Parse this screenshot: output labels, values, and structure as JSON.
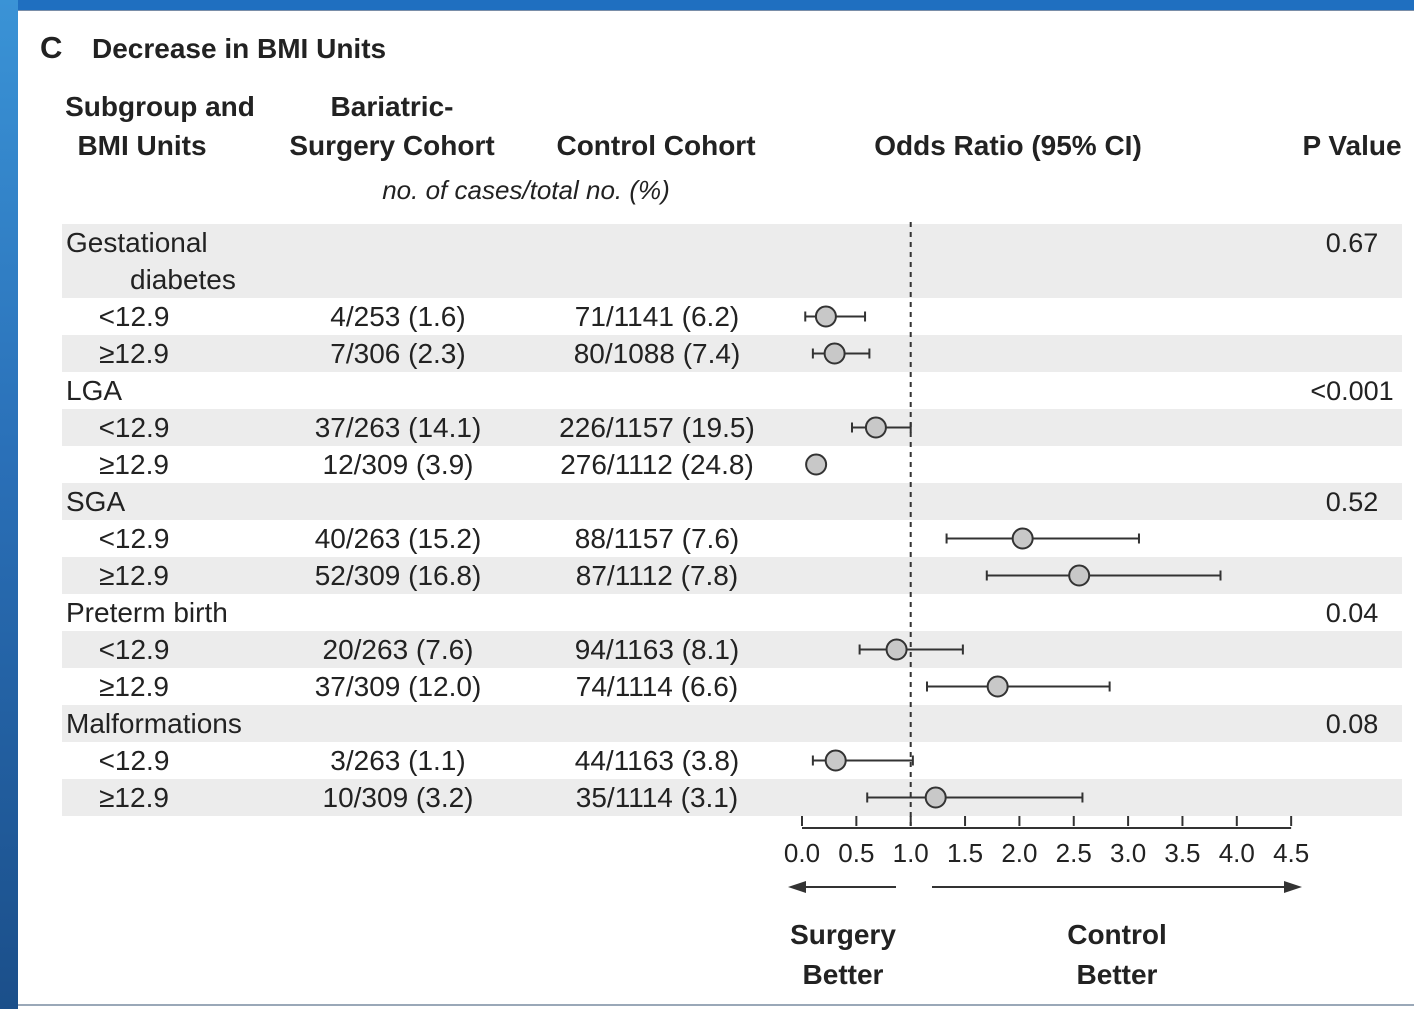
{
  "panel": {
    "letter": "C",
    "title": "Decrease in BMI Units"
  },
  "headers": {
    "subgroup": [
      "Subgroup and",
      "BMI Units"
    ],
    "surgery": [
      "Bariatric-",
      "Surgery Cohort"
    ],
    "control": "Control Cohort",
    "odds": "Odds Ratio (95% CI)",
    "pvalue": "P Value",
    "units": "no. of cases/total no. (%)"
  },
  "directions": {
    "left": [
      "Surgery",
      "Better"
    ],
    "right": [
      "Control",
      "Better"
    ]
  },
  "colors": {
    "band": "#ececec",
    "marker_fill": "#c8c8c8",
    "marker_stroke": "#333333",
    "line": "#333333"
  },
  "chart_data": {
    "type": "forest",
    "xlim": [
      0.0,
      4.5
    ],
    "reference_line": 1.0,
    "ticks": [
      "0.0",
      "0.5",
      "1.0",
      "1.5",
      "2.0",
      "2.5",
      "3.0",
      "3.5",
      "4.0",
      "4.5"
    ],
    "groups": [
      {
        "name": [
          "Gestational",
          "diabetes"
        ],
        "p_value": "0.67",
        "rows": [
          {
            "label": "<12.9",
            "surgery": "4/253 (1.6)",
            "control": "71/1141 (6.2)",
            "or": 0.22,
            "lo": 0.03,
            "hi": 0.58
          },
          {
            "label": "≥12.9",
            "surgery": "7/306 (2.3)",
            "control": "80/1088 (7.4)",
            "or": 0.3,
            "lo": 0.1,
            "hi": 0.62
          }
        ]
      },
      {
        "name": [
          "LGA"
        ],
        "p_value": "<0.001",
        "rows": [
          {
            "label": "<12.9",
            "surgery": "37/263 (14.1)",
            "control": "226/1157 (19.5)",
            "or": 0.68,
            "lo": 0.46,
            "hi": 1.0
          },
          {
            "label": "≥12.9",
            "surgery": "12/309 (3.9)",
            "control": "276/1112 (24.8)",
            "or": 0.13,
            "lo": null,
            "hi": null
          }
        ]
      },
      {
        "name": [
          "SGA"
        ],
        "p_value": "0.52",
        "rows": [
          {
            "label": "<12.9",
            "surgery": "40/263 (15.2)",
            "control": "88/1157 (7.6)",
            "or": 2.03,
            "lo": 1.33,
            "hi": 3.1
          },
          {
            "label": "≥12.9",
            "surgery": "52/309 (16.8)",
            "control": "87/1112 (7.8)",
            "or": 2.55,
            "lo": 1.7,
            "hi": 3.85
          }
        ]
      },
      {
        "name": [
          "Preterm birth"
        ],
        "p_value": "0.04",
        "rows": [
          {
            "label": "<12.9",
            "surgery": "20/263 (7.6)",
            "control": "94/1163 (8.1)",
            "or": 0.87,
            "lo": 0.53,
            "hi": 1.48
          },
          {
            "label": "≥12.9",
            "surgery": "37/309 (12.0)",
            "control": "74/1114 (6.6)",
            "or": 1.8,
            "lo": 1.15,
            "hi": 2.83
          }
        ]
      },
      {
        "name": [
          "Malformations"
        ],
        "p_value": "0.08",
        "rows": [
          {
            "label": "<12.9",
            "surgery": "3/263 (1.1)",
            "control": "44/1163 (3.8)",
            "or": 0.31,
            "lo": 0.1,
            "hi": 1.02
          },
          {
            "label": "≥12.9",
            "surgery": "10/309 (3.2)",
            "control": "35/1114 (3.1)",
            "or": 1.23,
            "lo": 0.6,
            "hi": 2.58
          }
        ]
      }
    ]
  }
}
